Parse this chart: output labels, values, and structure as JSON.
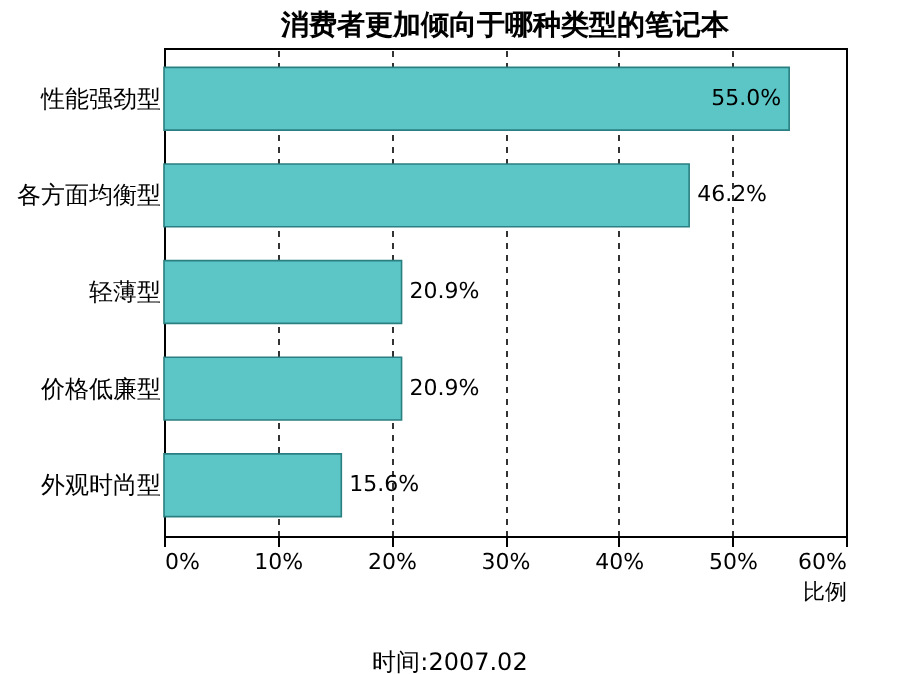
{
  "chart_data": {
    "type": "bar",
    "orientation": "horizontal",
    "title": "消费者更加倾向于哪种类型的笔记本",
    "xlabel": "比例",
    "categories": [
      "性能强劲型",
      "各方面均衡型",
      "轻薄型",
      "价格低廉型",
      "外观时尚型"
    ],
    "values": [
      55.0,
      46.2,
      20.9,
      20.9,
      15.6
    ],
    "value_labels": [
      "55.0%",
      "46.2%",
      "20.9%",
      "20.9%",
      "15.6%"
    ],
    "color": "#5cc6c6",
    "xlim": [
      0,
      60
    ],
    "xticks": [
      {
        "value": 0,
        "label": "0%"
      },
      {
        "value": 10,
        "label": "10%"
      },
      {
        "value": 20,
        "label": "20%"
      },
      {
        "value": 30,
        "label": "30%"
      },
      {
        "value": 40,
        "label": "40%"
      },
      {
        "value": 50,
        "label": "50%"
      },
      {
        "value": 60,
        "label": "60%"
      }
    ],
    "grid": "x",
    "annotations": [
      "时间:2007.02"
    ]
  }
}
